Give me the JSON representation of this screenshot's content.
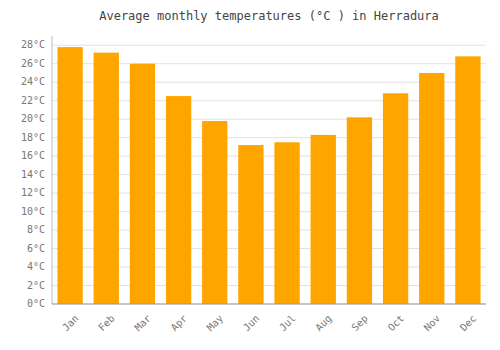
{
  "chart_data": {
    "type": "bar",
    "title": "Average monthly temperatures (°C ) in Herradura",
    "categories": [
      "Jan",
      "Feb",
      "Mar",
      "Apr",
      "May",
      "Jun",
      "Jul",
      "Aug",
      "Sep",
      "Oct",
      "Nov",
      "Dec"
    ],
    "values": [
      27.8,
      27.2,
      26.0,
      22.5,
      19.8,
      17.2,
      17.5,
      18.3,
      20.2,
      22.8,
      25.0,
      26.8
    ],
    "color": "#FFA500",
    "ylim": [
      0,
      29
    ],
    "yticks": [
      {
        "value": 0,
        "label": "0°C"
      },
      {
        "value": 2,
        "label": "2°C"
      },
      {
        "value": 4,
        "label": "4°C"
      },
      {
        "value": 6,
        "label": "6°C"
      },
      {
        "value": 8,
        "label": "8°C"
      },
      {
        "value": 10,
        "label": "10°C"
      },
      {
        "value": 12,
        "label": "12°C"
      },
      {
        "value": 14,
        "label": "14°C"
      },
      {
        "value": 16,
        "label": "16°C"
      },
      {
        "value": 18,
        "label": "18°C"
      },
      {
        "value": 20,
        "label": "20°C"
      },
      {
        "value": 22,
        "label": "22°C"
      },
      {
        "value": 24,
        "label": "24°C"
      },
      {
        "value": 26,
        "label": "26°C"
      },
      {
        "value": 28,
        "label": "28°C"
      }
    ],
    "grid": true
  }
}
